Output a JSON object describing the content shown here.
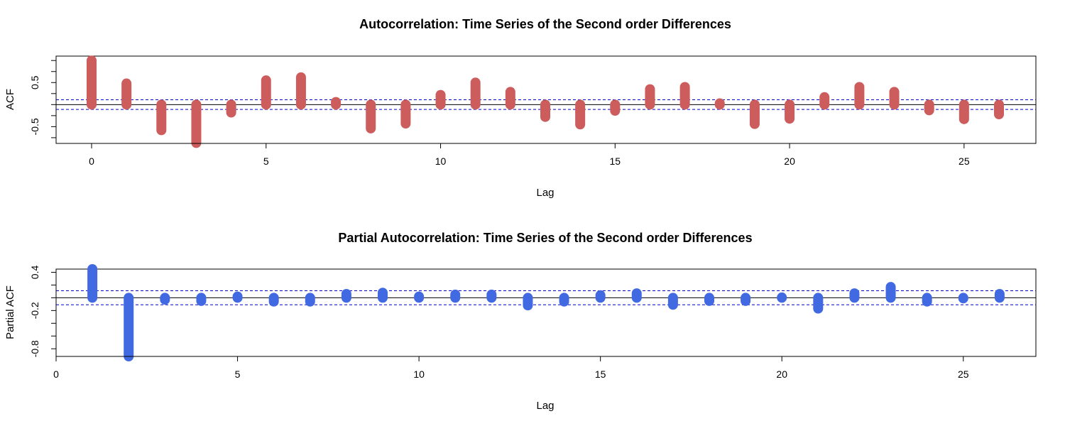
{
  "chart_data": [
    {
      "type": "bar",
      "title": "Autocorrelation: Time Series of the Second order Differences",
      "xlabel": "Lag",
      "ylabel": "ACF",
      "color": "#cd5c5c",
      "ci_color": "#0000cd",
      "xlim": [
        0,
        26
      ],
      "ylim": [
        -0.88,
        1.1
      ],
      "x_ticks": [
        0,
        5,
        10,
        15,
        20,
        25
      ],
      "y_ticks": [
        -0.75,
        -0.5,
        -0.25,
        0,
        0.25,
        0.5,
        0.75,
        1.0
      ],
      "y_tick_labels": [
        "-0.5",
        "0.5"
      ],
      "y_tick_label_values": [
        -0.5,
        0.5
      ],
      "ci": 0.11,
      "x": [
        0,
        1,
        2,
        3,
        4,
        5,
        6,
        7,
        8,
        9,
        10,
        11,
        12,
        13,
        14,
        15,
        16,
        17,
        18,
        19,
        20,
        21,
        22,
        23,
        24,
        25,
        26
      ],
      "values": [
        1.0,
        0.48,
        -0.58,
        -0.87,
        -0.18,
        0.55,
        0.62,
        0.06,
        -0.54,
        -0.43,
        0.22,
        0.5,
        0.29,
        -0.28,
        -0.45,
        -0.14,
        0.35,
        0.4,
        0.03,
        -0.44,
        -0.32,
        0.17,
        0.4,
        0.29,
        -0.13,
        -0.33,
        -0.22
      ]
    },
    {
      "type": "bar",
      "title": "Partial Autocorrelation: Time Series of the Second order Differences",
      "xlabel": "Lag",
      "ylabel": "Partial ACF",
      "color": "#4169e1",
      "ci_color": "#0000cd",
      "xlim": [
        0,
        27
      ],
      "ylim": [
        -0.92,
        0.45
      ],
      "x_ticks": [
        0,
        5,
        10,
        15,
        20,
        25
      ],
      "y_ticks": [
        -0.8,
        -0.6,
        -0.4,
        -0.2,
        0,
        0.2,
        0.4
      ],
      "y_tick_labels": [
        "-0.8",
        "-0.2",
        "0.4"
      ],
      "y_tick_label_values": [
        -0.8,
        -0.2,
        0.4
      ],
      "ci": 0.11,
      "x": [
        1,
        2,
        3,
        4,
        5,
        6,
        7,
        8,
        9,
        10,
        11,
        12,
        13,
        14,
        15,
        16,
        17,
        18,
        19,
        20,
        21,
        22,
        23,
        24,
        25,
        26
      ],
      "values": [
        0.45,
        -0.92,
        -0.03,
        -0.05,
        0.02,
        -0.06,
        -0.06,
        0.06,
        0.08,
        0.02,
        0.05,
        0.05,
        -0.12,
        -0.06,
        0.04,
        0.07,
        -0.11,
        -0.05,
        -0.05,
        0.0,
        -0.17,
        0.07,
        0.17,
        -0.06,
        -0.01,
        0.06
      ]
    }
  ]
}
